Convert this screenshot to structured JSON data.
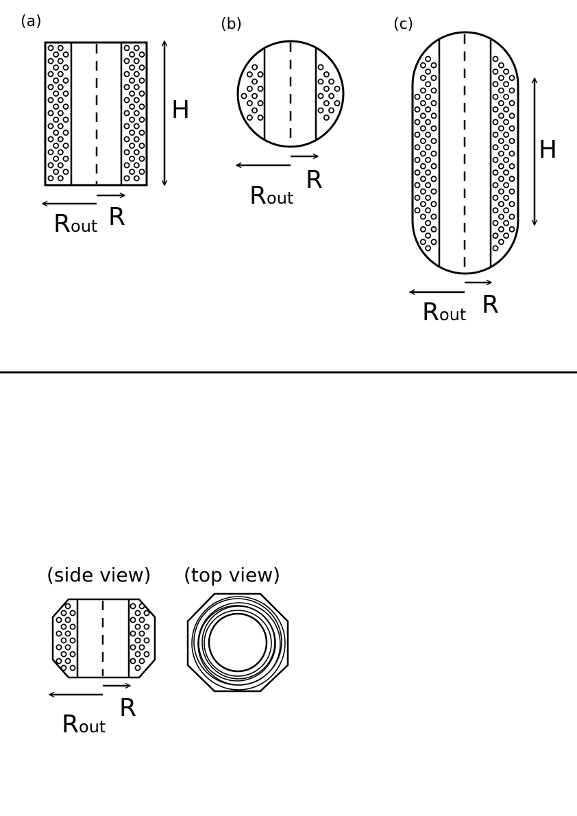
{
  "panels": {
    "a": {
      "label": "(a)",
      "height_label": "H",
      "rout_main": "R",
      "rout_sub": "out",
      "r_label": "R"
    },
    "b": {
      "label": "(b)",
      "rout_main": "R",
      "rout_sub": "out",
      "r_label": "R"
    },
    "c": {
      "label": "(c)",
      "height_label": "H",
      "rout_main": "R",
      "rout_sub": "out",
      "r_label": "R"
    }
  },
  "bottom": {
    "side_view_label": "(side view)",
    "top_view_label": "(top view)",
    "rout_main": "R",
    "rout_sub": "out",
    "r_label": "R"
  },
  "colors": {
    "ink": "#000000",
    "background": "#ffffff"
  }
}
